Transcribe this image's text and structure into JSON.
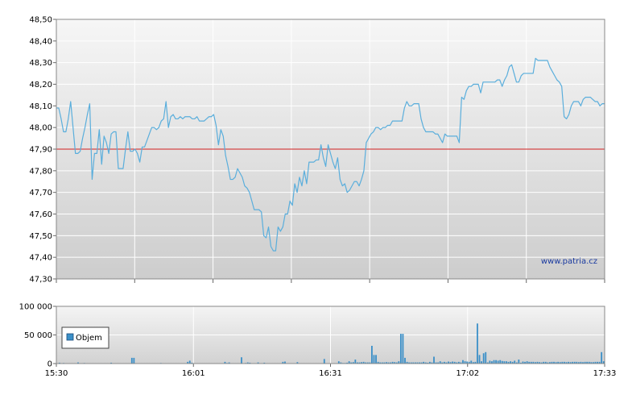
{
  "chart_data": [
    {
      "type": "line",
      "title": "",
      "xlabel": "",
      "ylabel": "",
      "ylim": [
        47.3,
        48.5
      ],
      "y_ticks": [
        "47,30",
        "47,40",
        "47,50",
        "47,60",
        "47,70",
        "47,80",
        "47,90",
        "48,00",
        "48,10",
        "48,20",
        "48,30",
        "48,40",
        "48,50"
      ],
      "reference_line": 47.9,
      "reference_color": "#d22020",
      "line_color": "#5aaedc",
      "watermark": "www.patria.cz",
      "grid": true,
      "series": [
        {
          "values": [
            48.09,
            48.09,
            48.04,
            47.98,
            47.98,
            48.04,
            48.12,
            48.0,
            47.88,
            47.88,
            47.89,
            47.95,
            48.0,
            48.06,
            48.11,
            47.76,
            47.88,
            47.88,
            47.99,
            47.83,
            47.96,
            47.93,
            47.88,
            47.97,
            47.98,
            47.98,
            47.81,
            47.81,
            47.81,
            47.9,
            47.98,
            47.89,
            47.89,
            47.9,
            47.88,
            47.84,
            47.91,
            47.91,
            47.94,
            47.97,
            48.0,
            48.0,
            47.99,
            48.0,
            48.03,
            48.04,
            48.12,
            48.0,
            48.05,
            48.06,
            48.04,
            48.04,
            48.05,
            48.04,
            48.05,
            48.05,
            48.05,
            48.04,
            48.04,
            48.05,
            48.03,
            48.03,
            48.03,
            48.04,
            48.05,
            48.05,
            48.06,
            48.01,
            47.92,
            47.99,
            47.96,
            47.87,
            47.82,
            47.76,
            47.76,
            47.77,
            47.81,
            47.79,
            47.77,
            47.73,
            47.72,
            47.7,
            47.66,
            47.62,
            47.62,
            47.62,
            47.61,
            47.5,
            47.49,
            47.54,
            47.45,
            47.43,
            47.43,
            47.54,
            47.52,
            47.54,
            47.6,
            47.6,
            47.66,
            47.64,
            47.74,
            47.7,
            47.77,
            47.73,
            47.8,
            47.74,
            47.84,
            47.84,
            47.84,
            47.85,
            47.85,
            47.92,
            47.86,
            47.82,
            47.92,
            47.88,
            47.84,
            47.81,
            47.86,
            47.76,
            47.73,
            47.74,
            47.7,
            47.71,
            47.73,
            47.75,
            47.75,
            47.73,
            47.76,
            47.8,
            47.93,
            47.95,
            47.97,
            47.98,
            48.0,
            48.0,
            47.99,
            48.0,
            48.0,
            48.01,
            48.01,
            48.03,
            48.03,
            48.03,
            48.03,
            48.03,
            48.09,
            48.12,
            48.1,
            48.1,
            48.11,
            48.11,
            48.11,
            48.04,
            48.0,
            47.98,
            47.98,
            47.98,
            47.98,
            47.97,
            47.97,
            47.95,
            47.93,
            47.97,
            47.96,
            47.96,
            47.96,
            47.96,
            47.96,
            47.93,
            48.14,
            48.13,
            48.17,
            48.19,
            48.19,
            48.2,
            48.2,
            48.2,
            48.16,
            48.21,
            48.21,
            48.21,
            48.21,
            48.21,
            48.21,
            48.22,
            48.22,
            48.19,
            48.22,
            48.24,
            48.28,
            48.29,
            48.25,
            48.21,
            48.21,
            48.24,
            48.25,
            48.25,
            48.25,
            48.25,
            48.25,
            48.32,
            48.31,
            48.31,
            48.31,
            48.31,
            48.31,
            48.28,
            48.26,
            48.24,
            48.22,
            48.21,
            48.19,
            48.05,
            48.04,
            48.06,
            48.1,
            48.12,
            48.12,
            48.12,
            48.1,
            48.13,
            48.14,
            48.14,
            48.14,
            48.13,
            48.12,
            48.12,
            48.1,
            48.11,
            48.11
          ]
        }
      ]
    },
    {
      "type": "bar",
      "title": "",
      "xlabel": "",
      "ylabel": "",
      "ylim": [
        0,
        100000
      ],
      "y_ticks": [
        "0",
        "50 000",
        "100 000"
      ],
      "x_ticks": [
        "15:30",
        "16:01",
        "16:31",
        "17:02",
        "17:33"
      ],
      "grid": true,
      "bar_color": "#3a8fc8",
      "series": [
        {
          "name": "Objem",
          "values": [
            0,
            1500,
            0,
            1000,
            0,
            0,
            500,
            0,
            0,
            0,
            2000,
            0,
            0,
            1000,
            0,
            0,
            0,
            0,
            500,
            0,
            0,
            0,
            0,
            0,
            0,
            0,
            1500,
            0,
            0,
            0,
            0,
            0,
            0,
            0,
            0,
            0,
            10000,
            10000,
            0,
            0,
            500,
            0,
            0,
            0,
            0,
            0,
            0,
            0,
            0,
            0,
            1000,
            0,
            0,
            0,
            0,
            0,
            0,
            0,
            0,
            0,
            0,
            0,
            0,
            3000,
            5000,
            1500,
            0,
            0,
            0,
            0,
            0,
            0,
            500,
            0,
            0,
            0,
            0,
            0,
            0,
            0,
            0,
            3000,
            1000,
            2000,
            0,
            0,
            0,
            0,
            0,
            11000,
            500,
            1000,
            2000,
            1500,
            0,
            0,
            0,
            2000,
            0,
            0,
            1500,
            0,
            500,
            0,
            0,
            0,
            0,
            0,
            0,
            3000,
            3500,
            500,
            0,
            0,
            0,
            0,
            2500,
            0,
            0,
            0,
            0,
            0,
            0,
            0,
            0,
            0,
            0,
            0,
            0,
            8000,
            0,
            0,
            0,
            0,
            0,
            0,
            4000,
            2000,
            1000,
            1000,
            1500,
            4000,
            2000,
            2500,
            7000,
            2000,
            2000,
            2500,
            3000,
            2000,
            2000,
            2000,
            31000,
            15000,
            15000,
            3000,
            2000,
            2000,
            2000,
            2500,
            2000,
            2000,
            3000,
            2500,
            2000,
            4000,
            52000,
            52000,
            10000,
            3000,
            2000,
            2000,
            2000,
            2000,
            2000,
            2000,
            2000,
            3000,
            2000,
            1500,
            3000,
            2000,
            12000,
            2000,
            2000,
            4000,
            2000,
            3000,
            2000,
            3500,
            2500,
            3500,
            3000,
            2000,
            3000,
            2000,
            6000,
            4000,
            3500,
            3000,
            5000,
            2500,
            3000,
            70000,
            15000,
            4000,
            18000,
            20000,
            2000,
            5000,
            4000,
            6000,
            6000,
            5000,
            6000,
            4500,
            4000,
            4000,
            3000,
            4000,
            3000,
            5000,
            2000,
            7000,
            1500,
            3500,
            3000,
            4000,
            3000,
            3000,
            3000,
            2500,
            3000,
            2500,
            2000,
            3000,
            3000,
            2000,
            2500,
            3000,
            3000,
            2500,
            3000,
            2500,
            3000,
            3000,
            2500,
            3000,
            2500,
            3000,
            3000,
            3000,
            2500,
            3000,
            2500,
            3000,
            3000,
            3000,
            2500,
            2500,
            3000,
            3000,
            3000,
            20000,
            4000
          ]
        }
      ],
      "legend": "top-left"
    }
  ]
}
